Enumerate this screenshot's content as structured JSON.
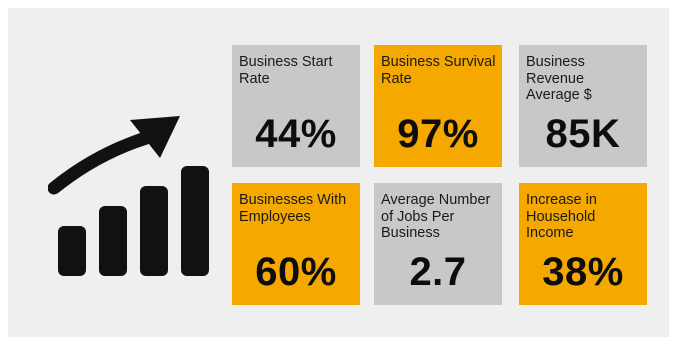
{
  "colors": {
    "gray_tile": "#c8c8c8",
    "orange_tile": "#f5a800",
    "panel_background": "#efefef",
    "icon": "#111111"
  },
  "icon": "bar-chart-growth-arrow-icon",
  "stats": [
    {
      "label": "Business Start Rate",
      "value": "44%",
      "color": "gray"
    },
    {
      "label": "Business Survival Rate",
      "value": "97%",
      "color": "orange"
    },
    {
      "label": "Business Revenue Average $",
      "value": "85K",
      "color": "gray"
    },
    {
      "label": "Businesses With Employees",
      "value": "60%",
      "color": "orange"
    },
    {
      "label": "Average Number of Jobs Per Business",
      "value": "2.7",
      "color": "gray"
    },
    {
      "label": "Increase in Household Income",
      "value": "38%",
      "color": "orange"
    }
  ]
}
